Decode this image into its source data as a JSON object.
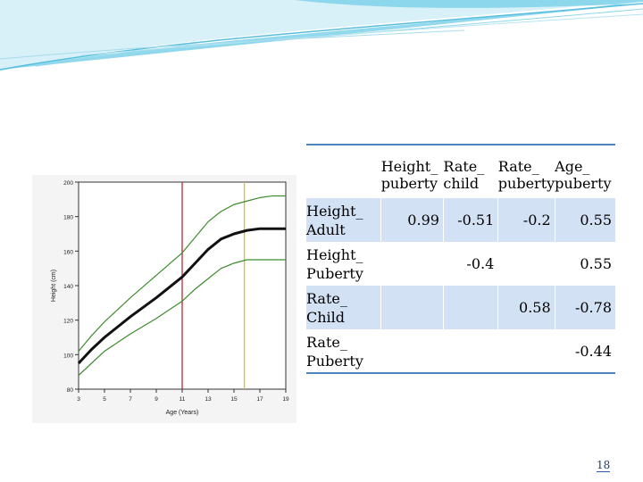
{
  "table": {
    "col_headers": [
      {
        "line1": "Height_",
        "line2": "puberty"
      },
      {
        "line1": "Rate_",
        "line2": "child"
      },
      {
        "line1": "Rate_",
        "line2": "puberty"
      },
      {
        "line1": "Age_",
        "line2": "puberty"
      }
    ],
    "rows": [
      {
        "label1": "Height_",
        "label2": "Adult",
        "cells": [
          "0.99",
          "-0.51",
          "-0.2",
          "0.55"
        ]
      },
      {
        "label1": "Height_",
        "label2": "Puberty",
        "cells": [
          "",
          "-0.4",
          "",
          "0.55"
        ]
      },
      {
        "label1": "Rate_",
        "label2": "Child",
        "cells": [
          "",
          "",
          "0.58",
          "-0.78"
        ]
      },
      {
        "label1": "Rate_",
        "label2": "Puberty",
        "cells": [
          "",
          "",
          "",
          "-0.44"
        ]
      }
    ]
  },
  "growth_chart": {
    "xlabel": "Age (Years)",
    "ylabel": "Height (cm)",
    "x_ticks": [
      "3",
      "5",
      "7",
      "9",
      "11",
      "13",
      "15",
      "17",
      "19"
    ],
    "y_ticks": [
      "80",
      "100",
      "120",
      "140",
      "160",
      "180",
      "200"
    ],
    "xlim": [
      3,
      19
    ],
    "ylim": [
      80,
      200
    ],
    "vlines": [
      {
        "x": 11,
        "color": "#c0282d"
      },
      {
        "x": 15.8,
        "color": "#d9c600"
      }
    ],
    "series": [
      {
        "role": "median",
        "color": "#111111",
        "x": [
          3,
          4,
          5,
          7,
          9,
          11,
          12,
          13,
          14,
          15,
          16,
          17,
          18,
          19
        ],
        "y": [
          95,
          103,
          110,
          122,
          133,
          145,
          153,
          161,
          167,
          170,
          172,
          173,
          173,
          173
        ]
      },
      {
        "role": "upper",
        "color": "#3d8b2e",
        "x": [
          3,
          4,
          5,
          7,
          9,
          11,
          12,
          13,
          14,
          15,
          16,
          17,
          18,
          19
        ],
        "y": [
          102,
          111,
          119,
          133,
          146,
          159,
          168,
          177,
          183,
          187,
          189,
          191,
          192,
          192
        ]
      },
      {
        "role": "lower",
        "color": "#3d8b2e",
        "x": [
          3,
          4,
          5,
          7,
          9,
          11,
          12,
          13,
          14,
          15,
          16,
          17,
          18,
          19
        ],
        "y": [
          88,
          95,
          102,
          112,
          121,
          131,
          138,
          144,
          150,
          153,
          155,
          155,
          155,
          155
        ]
      }
    ]
  },
  "page_number": "18",
  "colors": {
    "rule": "#4a86bd",
    "shade": "#d2e1f3",
    "banner_a": "#4fc1e0",
    "banner_b": "#bfe6f2"
  }
}
